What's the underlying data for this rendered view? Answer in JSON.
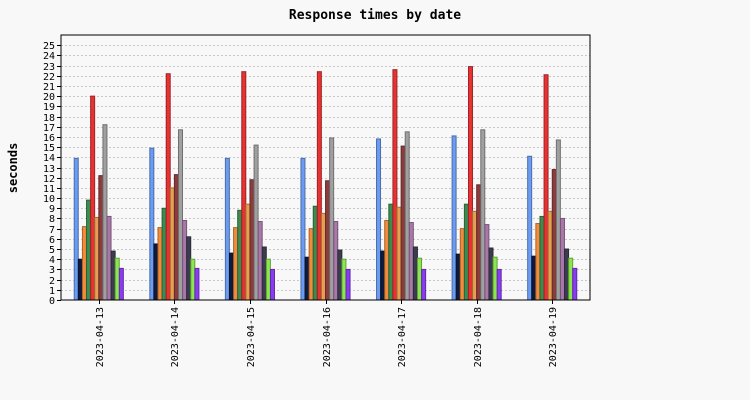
{
  "chart_data": {
    "type": "bar",
    "title": "Response times by date",
    "ylabel": "seconds",
    "xlabel": "",
    "ylim": [
      0,
      26
    ],
    "yticks": [
      0,
      1,
      2,
      3,
      4,
      5,
      6,
      7,
      8,
      9,
      10,
      11,
      12,
      13,
      14,
      15,
      16,
      17,
      18,
      19,
      20,
      21,
      22,
      23,
      24,
      25
    ],
    "grid": "horizontal-dotted",
    "legend": "none",
    "categories": [
      "2023-04-13",
      "2023-04-14",
      "2023-04-15",
      "2023-04-16",
      "2023-04-17",
      "2023-04-18",
      "2023-04-19"
    ],
    "series": [
      {
        "color": "#6b9cf2",
        "values": [
          13.9,
          14.9,
          13.9,
          13.9,
          15.8,
          16.1,
          14.1
        ]
      },
      {
        "color": "#0d1b3e",
        "values": [
          4.0,
          5.5,
          4.6,
          4.2,
          4.8,
          4.5,
          4.3
        ]
      },
      {
        "color": "#f28c3c",
        "values": [
          7.2,
          7.1,
          7.1,
          7.0,
          7.8,
          7.0,
          7.5
        ]
      },
      {
        "color": "#3c8c50",
        "values": [
          9.8,
          9.0,
          8.8,
          9.2,
          9.4,
          9.4,
          8.2
        ]
      },
      {
        "color": "#e63232",
        "values": [
          20.0,
          22.2,
          22.4,
          22.4,
          22.6,
          22.9,
          22.1
        ]
      },
      {
        "color": "#e6a050",
        "values": [
          8.1,
          11.0,
          9.4,
          8.5,
          9.1,
          8.7,
          8.7
        ]
      },
      {
        "color": "#8c3c3c",
        "values": [
          12.2,
          12.3,
          11.8,
          11.7,
          15.1,
          11.3,
          12.8
        ]
      },
      {
        "color": "#a0a0a0",
        "values": [
          17.2,
          16.7,
          15.2,
          15.9,
          16.5,
          16.7,
          15.7
        ]
      },
      {
        "color": "#a878a8",
        "values": [
          8.2,
          7.8,
          7.7,
          7.7,
          7.6,
          7.4,
          8.0
        ]
      },
      {
        "color": "#3c3c50",
        "values": [
          4.8,
          6.2,
          5.2,
          4.9,
          5.2,
          5.1,
          5.0
        ]
      },
      {
        "color": "#8ce650",
        "values": [
          4.1,
          4.0,
          4.0,
          4.0,
          4.1,
          4.2,
          4.1
        ]
      },
      {
        "color": "#8a3cf2",
        "values": [
          3.1,
          3.1,
          3.0,
          3.0,
          3.0,
          3.0,
          3.1
        ]
      }
    ]
  }
}
